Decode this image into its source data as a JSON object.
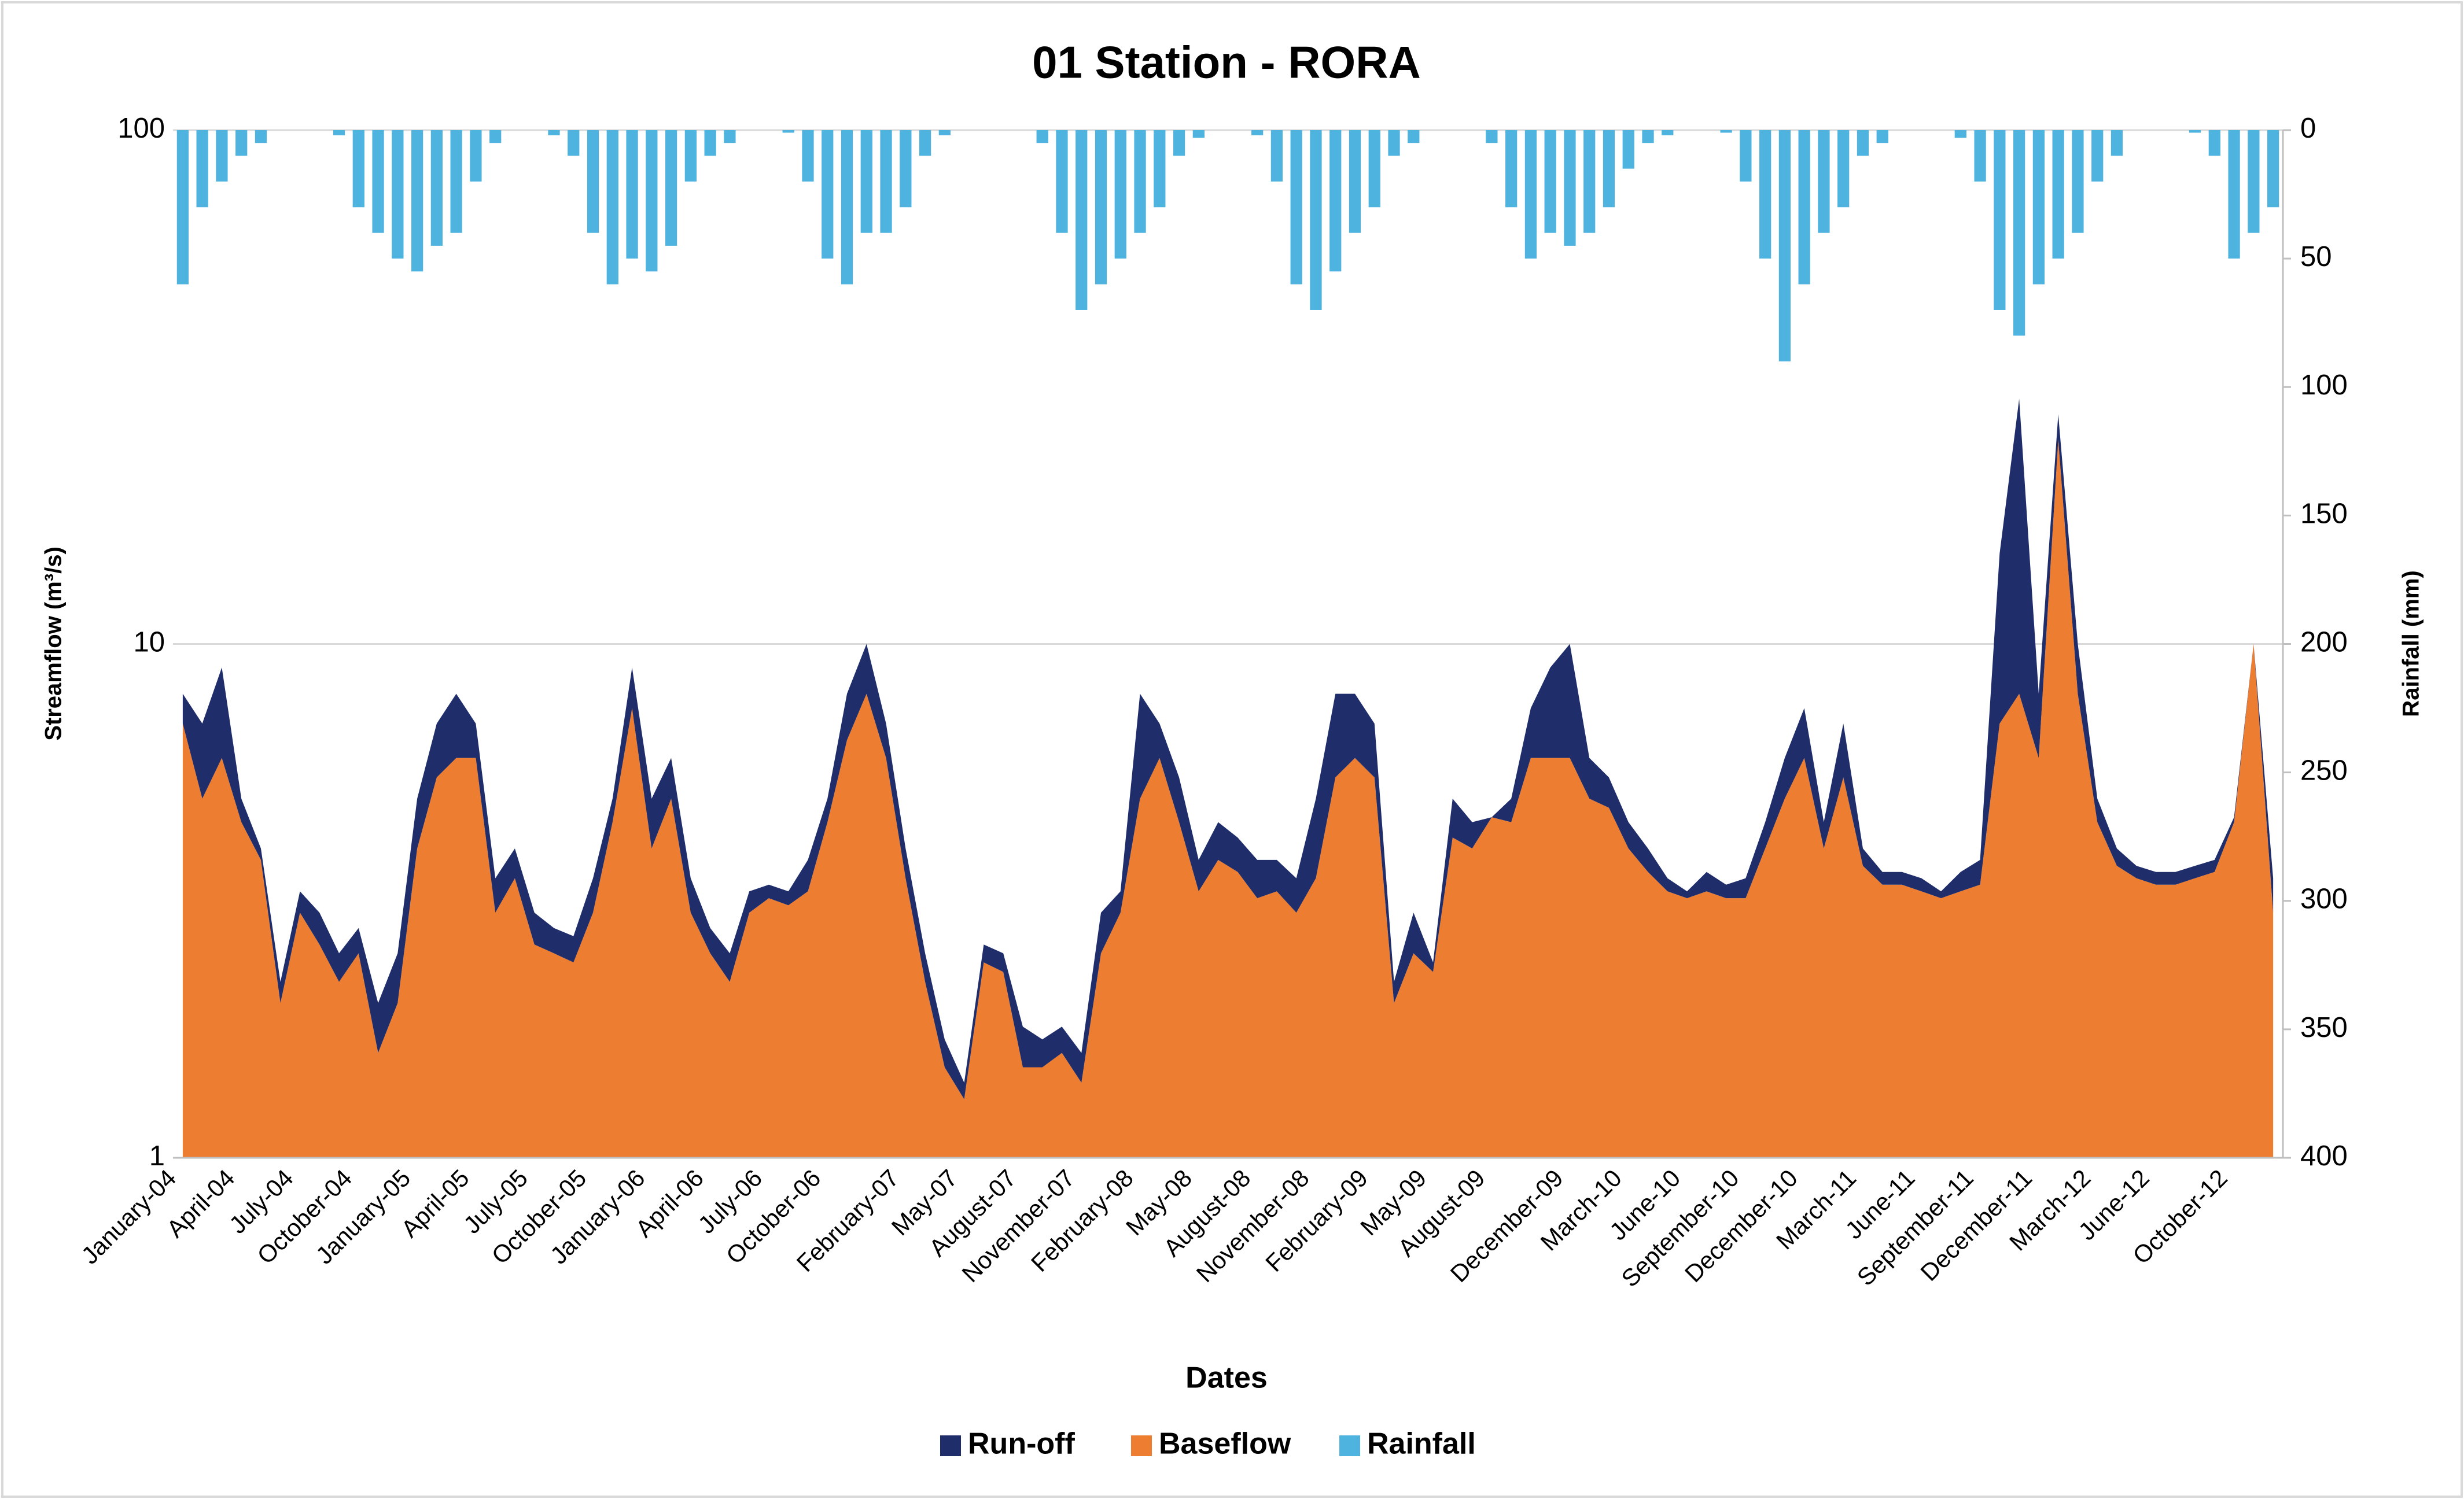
{
  "chart_data": {
    "type": "stacked_area_rainfall",
    "title": "01 Station - RORA",
    "x_label": "Dates",
    "y_label": "Streamflow (m³/s)",
    "y2_label": "Rainfall (mm)",
    "ylog": true,
    "ylim": [
      1,
      100
    ],
    "yticks": [
      1,
      10,
      100
    ],
    "y2lim": [
      0,
      400
    ],
    "y2ticks": [
      0,
      50,
      100,
      150,
      200,
      250,
      300,
      350,
      400
    ],
    "y2_inverted": true,
    "grid": true,
    "legend": "bottom",
    "categories": [
      "January-04",
      null,
      null,
      "April-04",
      null,
      null,
      "July-04",
      null,
      null,
      "October-04",
      null,
      null,
      "January-05",
      null,
      null,
      "April-05",
      null,
      null,
      "July-05",
      null,
      null,
      "October-05",
      null,
      null,
      "January-06",
      null,
      null,
      "April-06",
      null,
      null,
      "July-06",
      null,
      null,
      "October-06",
      null,
      null,
      null,
      "February-07",
      null,
      null,
      "May-07",
      null,
      null,
      "August-07",
      null,
      null,
      "November-07",
      null,
      null,
      "February-08",
      null,
      null,
      "May-08",
      null,
      null,
      "August-08",
      null,
      null,
      "November-08",
      null,
      null,
      "February-09",
      null,
      null,
      "May-09",
      null,
      null,
      "August-09",
      null,
      null,
      null,
      "December-09",
      null,
      null,
      "March-10",
      null,
      null,
      "June-10",
      null,
      null,
      "September-10",
      null,
      null,
      "December-10",
      null,
      null,
      "March-11",
      null,
      null,
      "June-11",
      null,
      null,
      "September-11",
      null,
      null,
      "December-11",
      null,
      null,
      "March-12",
      null,
      null,
      "June-12",
      null,
      null,
      null,
      "October-12",
      null,
      null
    ],
    "series": [
      {
        "name": "Run-off",
        "color": "#1f2d6b",
        "values": [
          1,
          2,
          3,
          0.5,
          0.2,
          0.2,
          0.3,
          0.4,
          0.3,
          0.3,
          0.4,
          0.5,
          1,
          1.5,
          2,
          1,
          0.5,
          0.5,
          0.4,
          0.3,
          0.3,
          0.5,
          0.5,
          1.5,
          1,
          1,
          0.5,
          0.3,
          0.3,
          0.3,
          0.2,
          0.2,
          0.5,
          0.5,
          1.5,
          2,
          1,
          0.5,
          0.3,
          0.2,
          0.1,
          0.2,
          0.2,
          0.3,
          0.2,
          0.2,
          0.2,
          0.5,
          0.3,
          3,
          1,
          1,
          0.5,
          0.7,
          0.6,
          0.6,
          0.5,
          0.5,
          1.5,
          2.5,
          2,
          1.5,
          0.2,
          0.5,
          0.1,
          0.8,
          0.5,
          0,
          0.5,
          1.5,
          3,
          4,
          1,
          0.7,
          0.5,
          0.4,
          0.2,
          0.1,
          0.3,
          0.2,
          0.3,
          0.5,
          1,
          1.5,
          0.5,
          1.5,
          0.3,
          0.2,
          0.2,
          0.2,
          0.1,
          0.3,
          0.4,
          8,
          22,
          2,
          3,
          2,
          0.5,
          0.3,
          0.2,
          0.2,
          0.2,
          0.2,
          0.2,
          0.1,
          0,
          0.5
        ]
      },
      {
        "name": "Baseflow",
        "color": "#ed7d31",
        "values": [
          7,
          5,
          6,
          4.5,
          3.8,
          2,
          3,
          2.6,
          2.2,
          2.5,
          1.6,
          2,
          4,
          5.5,
          6,
          6,
          3,
          3.5,
          2.6,
          2.5,
          2.4,
          3,
          4.5,
          7.5,
          4,
          5,
          3,
          2.5,
          2.2,
          3,
          3.2,
          3.1,
          3.3,
          4.5,
          6.5,
          8,
          6,
          3.5,
          2.2,
          1.5,
          1.3,
          2.4,
          2.3,
          1.5,
          1.5,
          1.6,
          1.4,
          2.5,
          3,
          5,
          6,
          4.5,
          3.3,
          3.8,
          3.6,
          3.2,
          3.3,
          3,
          3.5,
          5.5,
          6,
          5.5,
          2,
          2.5,
          2.3,
          4.2,
          4,
          4.6,
          4.5,
          6,
          6,
          6,
          5,
          4.8,
          4,
          3.6,
          3.3,
          3.2,
          3.3,
          3.2,
          3.2,
          4,
          5,
          6,
          4,
          5.5,
          3.7,
          3.4,
          3.4,
          3.3,
          3.2,
          3.3,
          3.4,
          7,
          8,
          6,
          25,
          8,
          4.5,
          3.7,
          3.5,
          3.4,
          3.4,
          3.5,
          3.6,
          4.5,
          10,
          3
        ]
      },
      {
        "name": "Rainfall",
        "color": "#4fb3e0",
        "axis": "y2",
        "values": [
          60,
          30,
          20,
          10,
          5,
          0,
          0,
          0,
          2,
          30,
          40,
          50,
          55,
          45,
          40,
          20,
          5,
          0,
          0,
          2,
          10,
          40,
          60,
          50,
          55,
          45,
          20,
          10,
          5,
          0,
          0,
          1,
          20,
          50,
          60,
          40,
          40,
          30,
          10,
          2,
          0,
          0,
          0,
          0,
          5,
          40,
          70,
          60,
          50,
          40,
          30,
          10,
          3,
          0,
          0,
          2,
          20,
          60,
          70,
          55,
          40,
          30,
          10,
          5,
          0,
          0,
          0,
          5,
          30,
          50,
          40,
          45,
          40,
          30,
          15,
          5,
          2,
          0,
          0,
          1,
          20,
          50,
          90,
          60,
          40,
          30,
          10,
          5,
          0,
          0,
          0,
          3,
          20,
          70,
          80,
          60,
          50,
          40,
          20,
          10,
          0,
          0,
          0,
          1,
          10,
          50,
          40,
          30
        ]
      }
    ]
  }
}
